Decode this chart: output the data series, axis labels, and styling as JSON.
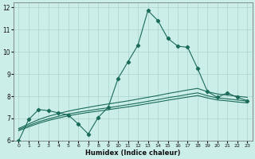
{
  "xlabel": "Humidex (Indice chaleur)",
  "bg_color": "#cceee8",
  "grid_color": "#aad4cc",
  "line_color": "#1a6b5a",
  "xlim": [
    -0.5,
    23.5
  ],
  "ylim": [
    6,
    12.2
  ],
  "yticks": [
    6,
    7,
    8,
    9,
    10,
    11,
    12
  ],
  "xticks": [
    0,
    1,
    2,
    3,
    4,
    5,
    6,
    7,
    8,
    9,
    10,
    11,
    12,
    13,
    14,
    15,
    16,
    17,
    18,
    19,
    20,
    21,
    22,
    23
  ],
  "main_line_x": [
    0,
    1,
    2,
    3,
    4,
    5,
    6,
    7,
    8,
    9,
    10,
    11,
    12,
    13,
    14,
    15,
    16,
    17,
    18,
    19,
    20,
    21,
    22,
    23
  ],
  "main_line_y": [
    6.0,
    6.95,
    7.4,
    7.35,
    7.25,
    7.15,
    6.75,
    6.3,
    7.05,
    7.5,
    8.8,
    9.55,
    10.3,
    11.85,
    11.4,
    10.6,
    10.25,
    10.2,
    9.25,
    8.2,
    7.95,
    8.15,
    7.95,
    7.8
  ],
  "line2_x": [
    0,
    1,
    2,
    3,
    4,
    5,
    6,
    7,
    8,
    9,
    10,
    11,
    12,
    13,
    14,
    15,
    16,
    17,
    18,
    19,
    20,
    21,
    22,
    23
  ],
  "line2_y": [
    6.55,
    6.75,
    6.95,
    7.1,
    7.22,
    7.33,
    7.42,
    7.5,
    7.58,
    7.65,
    7.72,
    7.79,
    7.87,
    7.95,
    8.03,
    8.12,
    8.2,
    8.28,
    8.35,
    8.2,
    8.1,
    8.05,
    8.0,
    7.95
  ],
  "line3_x": [
    0,
    1,
    2,
    3,
    4,
    5,
    6,
    7,
    8,
    9,
    10,
    11,
    12,
    13,
    14,
    15,
    16,
    17,
    18,
    19,
    20,
    21,
    22,
    23
  ],
  "line3_y": [
    6.5,
    6.68,
    6.85,
    6.98,
    7.1,
    7.2,
    7.28,
    7.35,
    7.42,
    7.48,
    7.55,
    7.62,
    7.69,
    7.77,
    7.85,
    7.93,
    8.0,
    8.08,
    8.15,
    8.02,
    7.92,
    7.88,
    7.83,
    7.78
  ],
  "line4_x": [
    0,
    1,
    2,
    3,
    4,
    5,
    6,
    7,
    8,
    9,
    10,
    11,
    12,
    13,
    14,
    15,
    16,
    17,
    18,
    19,
    20,
    21,
    22,
    23
  ],
  "line4_y": [
    6.45,
    6.62,
    6.78,
    6.91,
    7.02,
    7.12,
    7.2,
    7.27,
    7.33,
    7.39,
    7.46,
    7.52,
    7.59,
    7.67,
    7.74,
    7.82,
    7.89,
    7.96,
    8.03,
    7.92,
    7.83,
    7.79,
    7.74,
    7.7
  ]
}
